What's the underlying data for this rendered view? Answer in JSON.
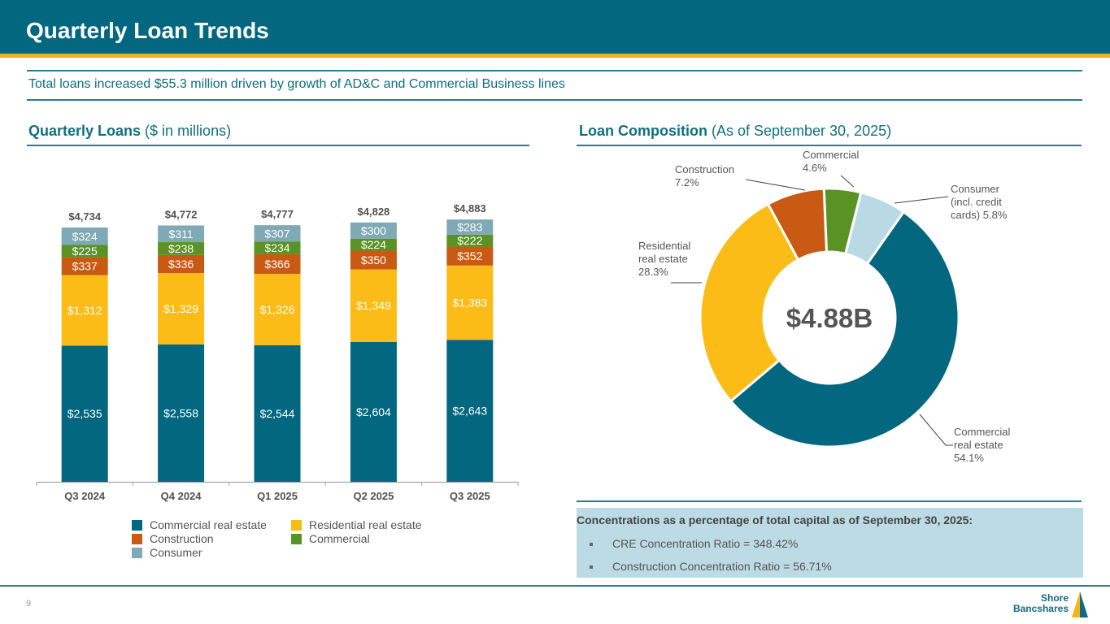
{
  "header": {
    "title": "Quarterly Loan Trends"
  },
  "subtitle": "Total loans increased $55.3 million driven by growth of AD&C and Commercial Business lines",
  "left_section": {
    "title_bold": "Quarterly Loans",
    "title_rest": " ($ in millions)"
  },
  "right_section": {
    "title_bold": "Loan Composition",
    "title_rest": " (As of September 30, 2025)"
  },
  "colors": {
    "commercial_real_estate": "#02677f",
    "residential_real_estate": "#fbbc17",
    "construction": "#c85a13",
    "commercial": "#5a9226",
    "consumer_bar": "#7fa9b5",
    "consumer_donut": "#b9d9e4",
    "header": "#02677f",
    "accent": "#e6b422"
  },
  "chart_data": [
    {
      "type": "bar",
      "stacked": true,
      "title": "Quarterly Loans ($ in millions)",
      "xlabel": "",
      "ylabel": "",
      "ylim": [
        0,
        4883
      ],
      "grid": false,
      "legend_position": "bottom",
      "categories": [
        "Q3 2024",
        "Q4 2024",
        "Q1 2025",
        "Q2 2025",
        "Q3 2025"
      ],
      "series": [
        {
          "name": "Commercial real estate",
          "key": "commercial_real_estate",
          "values": [
            2535,
            2558,
            2544,
            2604,
            2643
          ],
          "labels": [
            "$2,535",
            "$2,558",
            "$2,544",
            "$2,604",
            "$2,643"
          ]
        },
        {
          "name": "Residential real estate",
          "key": "residential_real_estate",
          "values": [
            1312,
            1329,
            1326,
            1349,
            1383
          ],
          "labels": [
            "$1,312",
            "$1,329",
            "$1,326",
            "$1,349",
            "$1,383"
          ]
        },
        {
          "name": "Construction",
          "key": "construction",
          "values": [
            337,
            336,
            366,
            350,
            352
          ],
          "labels": [
            "$337",
            "$336",
            "$366",
            "$350",
            "$352"
          ]
        },
        {
          "name": "Commercial",
          "key": "commercial",
          "values": [
            225,
            238,
            234,
            224,
            222
          ],
          "labels": [
            "$225",
            "$238",
            "$234",
            "$224",
            "$222"
          ]
        },
        {
          "name": "Consumer",
          "key": "consumer_bar",
          "values": [
            324,
            311,
            307,
            300,
            283
          ],
          "labels": [
            "$324",
            "$311",
            "$307",
            "$300",
            "$283"
          ]
        }
      ],
      "totals": [
        4734,
        4772,
        4777,
        4828,
        4883
      ],
      "total_labels": [
        "$4,734",
        "$4,772",
        "$4,777",
        "$4,828",
        "$4,883"
      ],
      "legend": [
        {
          "label": "Commercial real estate",
          "key": "commercial_real_estate"
        },
        {
          "label": "Residential real estate",
          "key": "residential_real_estate"
        },
        {
          "label": "Construction",
          "key": "construction"
        },
        {
          "label": "Commercial",
          "key": "commercial"
        },
        {
          "label": "Consumer",
          "key": "consumer_bar"
        }
      ]
    },
    {
      "type": "pie",
      "donut": true,
      "title": "Loan Composition (As of September 30, 2025)",
      "center_label": "$4.88B",
      "slices": [
        {
          "name": "Commercial real estate",
          "value": 54.1,
          "key": "commercial_real_estate",
          "label_lines": [
            "Commercial",
            "real estate",
            "54.1%"
          ]
        },
        {
          "name": "Residential real estate",
          "value": 28.3,
          "key": "residential_real_estate",
          "label_lines": [
            "Residential",
            "real estate",
            "28.3%"
          ]
        },
        {
          "name": "Construction",
          "value": 7.2,
          "key": "construction",
          "label_lines": [
            "Construction",
            "7.2%"
          ]
        },
        {
          "name": "Commercial",
          "value": 4.6,
          "key": "commercial",
          "label_lines": [
            "Commercial",
            "4.6%"
          ]
        },
        {
          "name": "Consumer (incl. credit cards)",
          "value": 5.8,
          "key": "consumer_donut",
          "label_lines": [
            "Consumer",
            "(incl. credit",
            "cards) 5.8%"
          ]
        }
      ]
    }
  ],
  "concentrations": {
    "title": "Concentrations as a percentage of total capital as of September 30, 2025:",
    "items": [
      "CRE Concentration Ratio = 348.42%",
      "Construction Concentration Ratio = 56.71%"
    ]
  },
  "footer": {
    "page_number": "9",
    "logo_line1": "Shore",
    "logo_line2": "Bancshares"
  }
}
